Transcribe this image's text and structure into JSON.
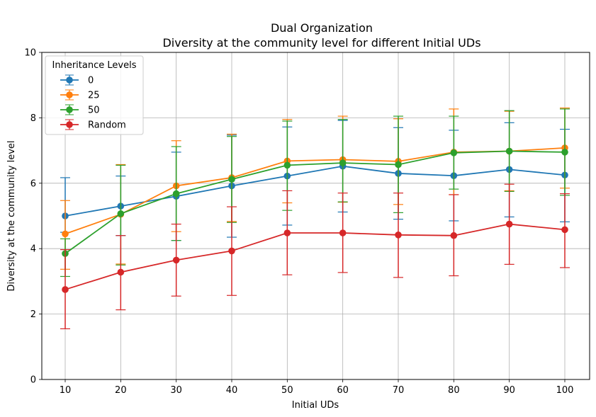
{
  "chart_data": {
    "type": "line",
    "title": "Dual Organization",
    "subtitle": "Diversity at the community level for different Initial UDs",
    "xlabel": "Initial UDs",
    "ylabel": "Diversity at the community level",
    "x": [
      10,
      20,
      30,
      40,
      50,
      60,
      70,
      80,
      90,
      100
    ],
    "xticks": [
      "10",
      "20",
      "30",
      "40",
      "50",
      "60",
      "70",
      "80",
      "90",
      "100"
    ],
    "ylim": [
      0,
      10
    ],
    "yticks": [
      "0",
      "2",
      "4",
      "6",
      "8",
      "10"
    ],
    "grid": true,
    "error_bars": true,
    "legend_title": "Inheritance Levels",
    "legend_position": "top-left",
    "series": [
      {
        "name": "0",
        "color": "#1f77b4",
        "values": [
          5.0,
          5.3,
          5.6,
          5.92,
          6.22,
          6.52,
          6.3,
          6.23,
          6.42,
          6.25
        ],
        "err_low": [
          4.5,
          4.4,
          4.25,
          4.35,
          4.72,
          5.12,
          4.9,
          4.85,
          4.97,
          4.82
        ],
        "err_high": [
          6.17,
          6.22,
          6.95,
          7.47,
          7.72,
          7.92,
          7.7,
          7.62,
          7.85,
          7.65
        ]
      },
      {
        "name": "25",
        "color": "#ff7f0e",
        "values": [
          4.45,
          5.05,
          5.92,
          6.17,
          6.68,
          6.72,
          6.67,
          6.95,
          6.98,
          7.08
        ],
        "err_low": [
          3.37,
          3.53,
          4.52,
          4.83,
          5.4,
          5.42,
          5.35,
          5.65,
          5.77,
          5.85
        ],
        "err_high": [
          5.47,
          6.57,
          7.3,
          7.5,
          7.95,
          8.05,
          7.97,
          8.27,
          8.2,
          8.3
        ]
      },
      {
        "name": "50",
        "color": "#2ca02c",
        "values": [
          3.85,
          5.07,
          5.68,
          6.12,
          6.55,
          6.62,
          6.57,
          6.93,
          6.98,
          6.95
        ],
        "err_low": [
          3.15,
          3.5,
          4.25,
          4.8,
          5.17,
          5.43,
          5.1,
          5.82,
          5.75,
          5.63
        ],
        "err_high": [
          4.3,
          6.55,
          7.12,
          7.43,
          7.9,
          7.95,
          8.05,
          8.05,
          8.22,
          8.27
        ]
      },
      {
        "name": "Random",
        "color": "#d62728",
        "values": [
          2.75,
          3.28,
          3.65,
          3.93,
          4.48,
          4.48,
          4.42,
          4.4,
          4.75,
          4.58
        ],
        "err_low": [
          1.55,
          2.13,
          2.55,
          2.57,
          3.2,
          3.27,
          3.12,
          3.17,
          3.52,
          3.42
        ],
        "err_high": [
          3.97,
          4.4,
          4.75,
          5.28,
          5.77,
          5.7,
          5.7,
          5.65,
          5.97,
          5.68
        ]
      }
    ]
  }
}
